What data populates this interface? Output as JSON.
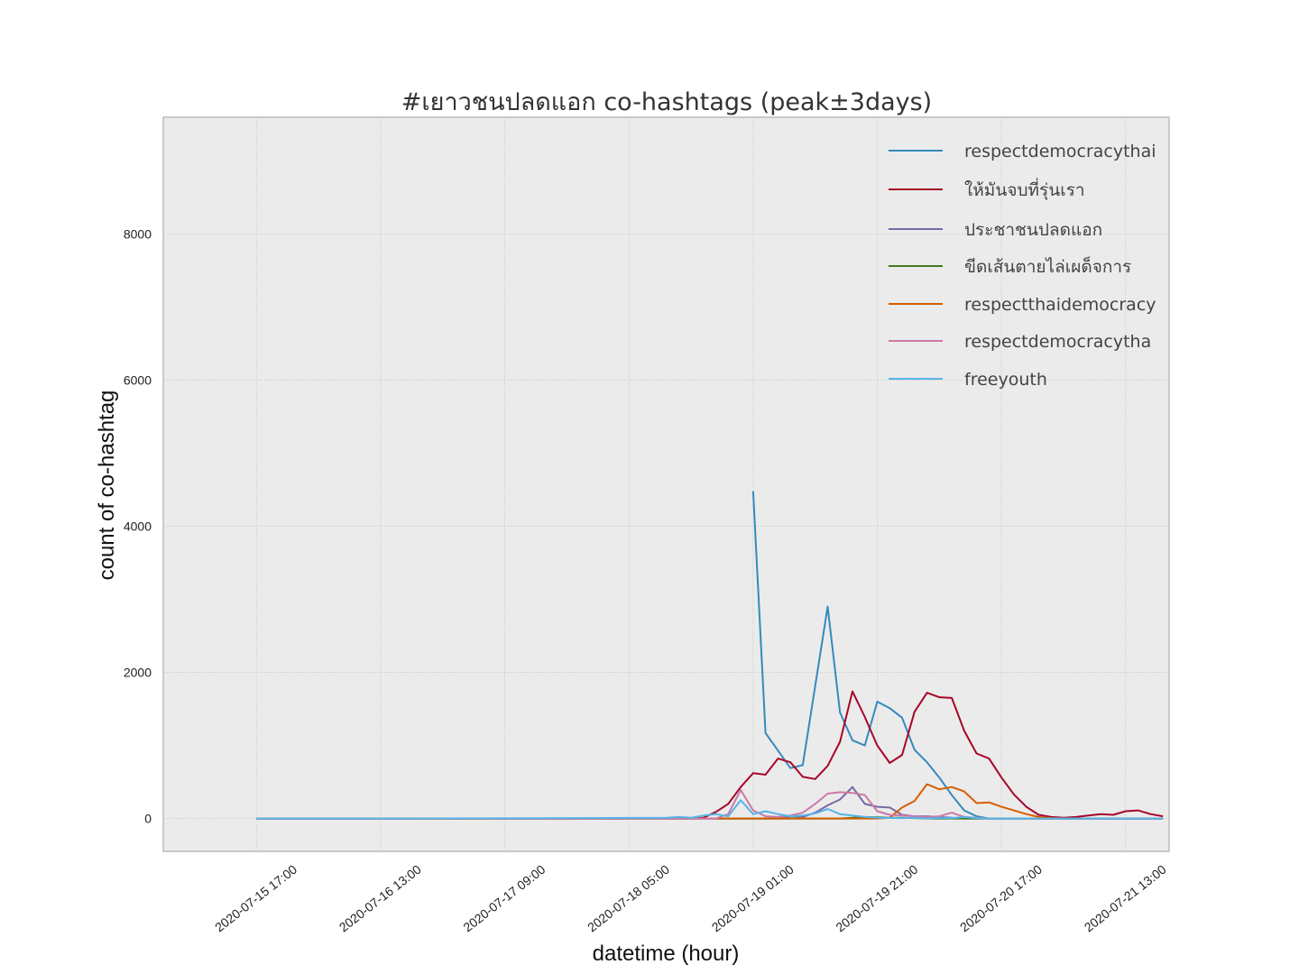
{
  "chart_data": {
    "type": "line",
    "title": "#เยาวชนปลดแอก co-hashtags (peak±3days)",
    "xlabel": "datetime (hour)",
    "ylabel": "count of co-hashtag",
    "x_start": "2020-07-15 17:00",
    "x_step_hours": 2,
    "x_tick_labels": [
      "2020-07-15 17:00",
      "2020-07-16 13:00",
      "2020-07-17 09:00",
      "2020-07-18 05:00",
      "2020-07-19 01:00",
      "2020-07-19 21:00",
      "2020-07-20 17:00",
      "2020-07-21 13:00"
    ],
    "y_ticks": [
      0,
      2000,
      4000,
      6000,
      8000
    ],
    "ylim": [
      -450,
      9600
    ],
    "xlim": [
      "2020-07-15 02:00",
      "2020-07-21 20:00"
    ],
    "grid": true,
    "legend_position": "top-right",
    "background": "#ebebeb",
    "series": [
      {
        "name": "respectdemocracythai",
        "color": "#348abd",
        "points": [
          [
            "2020-07-19 01:00",
            4480
          ],
          [
            "2020-07-19 03:00",
            1170
          ],
          [
            "2020-07-19 05:00",
            930
          ],
          [
            "2020-07-19 07:00",
            690
          ],
          [
            "2020-07-19 09:00",
            730
          ],
          [
            "2020-07-19 13:00",
            2900
          ],
          [
            "2020-07-19 15:00",
            1450
          ],
          [
            "2020-07-19 17:00",
            1070
          ],
          [
            "2020-07-19 19:00",
            1000
          ],
          [
            "2020-07-19 21:00",
            1600
          ],
          [
            "2020-07-19 23:00",
            1510
          ],
          [
            "2020-07-20 01:00",
            1380
          ],
          [
            "2020-07-20 03:00",
            940
          ],
          [
            "2020-07-20 05:00",
            770
          ],
          [
            "2020-07-20 07:00",
            560
          ],
          [
            "2020-07-20 09:00",
            320
          ],
          [
            "2020-07-20 11:00",
            110
          ],
          [
            "2020-07-20 13:00",
            30
          ],
          [
            "2020-07-20 15:00",
            0
          ],
          [
            "2020-07-20 17:00",
            0
          ],
          [
            "2020-07-21 13:00",
            0
          ],
          [
            "2020-07-21 19:00",
            0
          ]
        ]
      },
      {
        "name": "ให้มันจบที่รุ่นเรา",
        "color": "#a60628",
        "points": [
          [
            "2020-07-15 17:00",
            0
          ],
          [
            "2020-07-18 15:00",
            0
          ],
          [
            "2020-07-18 17:00",
            10
          ],
          [
            "2020-07-18 19:00",
            90
          ],
          [
            "2020-07-18 21:00",
            200
          ],
          [
            "2020-07-18 23:00",
            430
          ],
          [
            "2020-07-19 01:00",
            620
          ],
          [
            "2020-07-19 03:00",
            600
          ],
          [
            "2020-07-19 05:00",
            820
          ],
          [
            "2020-07-19 07:00",
            770
          ],
          [
            "2020-07-19 09:00",
            570
          ],
          [
            "2020-07-19 11:00",
            540
          ],
          [
            "2020-07-19 13:00",
            720
          ],
          [
            "2020-07-19 15:00",
            1050
          ],
          [
            "2020-07-19 17:00",
            1740
          ],
          [
            "2020-07-19 19:00",
            1390
          ],
          [
            "2020-07-19 21:00",
            1000
          ],
          [
            "2020-07-19 23:00",
            760
          ],
          [
            "2020-07-20 01:00",
            870
          ],
          [
            "2020-07-20 03:00",
            1460
          ],
          [
            "2020-07-20 05:00",
            1720
          ],
          [
            "2020-07-20 07:00",
            1660
          ],
          [
            "2020-07-20 09:00",
            1650
          ],
          [
            "2020-07-20 11:00",
            1200
          ],
          [
            "2020-07-20 13:00",
            890
          ],
          [
            "2020-07-20 15:00",
            820
          ],
          [
            "2020-07-20 17:00",
            560
          ],
          [
            "2020-07-20 19:00",
            330
          ],
          [
            "2020-07-20 21:00",
            160
          ],
          [
            "2020-07-20 23:00",
            50
          ],
          [
            "2020-07-21 01:00",
            20
          ],
          [
            "2020-07-21 03:00",
            10
          ],
          [
            "2020-07-21 05:00",
            20
          ],
          [
            "2020-07-21 07:00",
            40
          ],
          [
            "2020-07-21 09:00",
            60
          ],
          [
            "2020-07-21 11:00",
            50
          ],
          [
            "2020-07-21 13:00",
            100
          ],
          [
            "2020-07-21 15:00",
            110
          ],
          [
            "2020-07-21 17:00",
            60
          ],
          [
            "2020-07-21 19:00",
            30
          ]
        ]
      },
      {
        "name": "ประชาชนปลดแอก",
        "color": "#7a68a6",
        "points": [
          [
            "2020-07-15 17:00",
            0
          ],
          [
            "2020-07-19 05:00",
            0
          ],
          [
            "2020-07-19 07:00",
            30
          ],
          [
            "2020-07-19 09:00",
            20
          ],
          [
            "2020-07-19 11:00",
            80
          ],
          [
            "2020-07-19 13:00",
            180
          ],
          [
            "2020-07-19 15:00",
            260
          ],
          [
            "2020-07-19 17:00",
            430
          ],
          [
            "2020-07-19 19:00",
            200
          ],
          [
            "2020-07-19 21:00",
            160
          ],
          [
            "2020-07-19 23:00",
            150
          ],
          [
            "2020-07-20 01:00",
            50
          ],
          [
            "2020-07-20 03:00",
            30
          ],
          [
            "2020-07-20 05:00",
            30
          ],
          [
            "2020-07-20 07:00",
            20
          ],
          [
            "2020-07-20 09:00",
            10
          ],
          [
            "2020-07-20 11:00",
            0
          ],
          [
            "2020-07-21 19:00",
            0
          ]
        ]
      },
      {
        "name": "ขีดเส้นตายไล่เผด็จการ",
        "color": "#467821",
        "points": [
          [
            "2020-07-15 17:00",
            0
          ],
          [
            "2020-07-19 15:00",
            0
          ],
          [
            "2020-07-19 17:00",
            10
          ],
          [
            "2020-07-19 19:00",
            20
          ],
          [
            "2020-07-19 21:00",
            15
          ],
          [
            "2020-07-19 23:00",
            10
          ],
          [
            "2020-07-20 01:00",
            10
          ],
          [
            "2020-07-20 03:00",
            5
          ],
          [
            "2020-07-20 05:00",
            0
          ],
          [
            "2020-07-21 19:00",
            0
          ]
        ]
      },
      {
        "name": "respectthaidemocracy",
        "color": "#d55e00",
        "points": [
          [
            "2020-07-15 17:00",
            0
          ],
          [
            "2020-07-19 21:00",
            0
          ],
          [
            "2020-07-19 23:00",
            10
          ],
          [
            "2020-07-20 01:00",
            150
          ],
          [
            "2020-07-20 03:00",
            240
          ],
          [
            "2020-07-20 05:00",
            470
          ],
          [
            "2020-07-20 07:00",
            400
          ],
          [
            "2020-07-20 09:00",
            430
          ],
          [
            "2020-07-20 11:00",
            370
          ],
          [
            "2020-07-20 13:00",
            210
          ],
          [
            "2020-07-20 15:00",
            220
          ],
          [
            "2020-07-20 17:00",
            160
          ],
          [
            "2020-07-20 19:00",
            110
          ],
          [
            "2020-07-20 21:00",
            60
          ],
          [
            "2020-07-20 23:00",
            20
          ],
          [
            "2020-07-21 01:00",
            5
          ],
          [
            "2020-07-21 03:00",
            0
          ],
          [
            "2020-07-21 19:00",
            0
          ]
        ]
      },
      {
        "name": "respectdemocracytha",
        "color": "#cc79a7",
        "points": [
          [
            "2020-07-15 17:00",
            0
          ],
          [
            "2020-07-18 19:00",
            0
          ],
          [
            "2020-07-18 21:00",
            60
          ],
          [
            "2020-07-18 23:00",
            390
          ],
          [
            "2020-07-19 01:00",
            110
          ],
          [
            "2020-07-19 03:00",
            30
          ],
          [
            "2020-07-19 05:00",
            20
          ],
          [
            "2020-07-19 07:00",
            40
          ],
          [
            "2020-07-19 09:00",
            80
          ],
          [
            "2020-07-19 11:00",
            200
          ],
          [
            "2020-07-19 13:00",
            340
          ],
          [
            "2020-07-19 15:00",
            360
          ],
          [
            "2020-07-19 17:00",
            350
          ],
          [
            "2020-07-19 19:00",
            320
          ],
          [
            "2020-07-19 21:00",
            100
          ],
          [
            "2020-07-19 23:00",
            50
          ],
          [
            "2020-07-20 01:00",
            40
          ],
          [
            "2020-07-20 03:00",
            30
          ],
          [
            "2020-07-20 05:00",
            20
          ],
          [
            "2020-07-20 07:00",
            30
          ],
          [
            "2020-07-20 09:00",
            80
          ],
          [
            "2020-07-20 11:00",
            20
          ],
          [
            "2020-07-20 13:00",
            10
          ],
          [
            "2020-07-20 15:00",
            0
          ],
          [
            "2020-07-21 19:00",
            0
          ]
        ]
      },
      {
        "name": "freeyouth",
        "color": "#56b4e9",
        "points": [
          [
            "2020-07-15 17:00",
            0
          ],
          [
            "2020-07-16 17:00",
            0
          ],
          [
            "2020-07-17 21:00",
            5
          ],
          [
            "2020-07-18 11:00",
            10
          ],
          [
            "2020-07-18 13:00",
            20
          ],
          [
            "2020-07-18 15:00",
            10
          ],
          [
            "2020-07-18 17:00",
            40
          ],
          [
            "2020-07-18 19:00",
            60
          ],
          [
            "2020-07-18 21:00",
            30
          ],
          [
            "2020-07-18 23:00",
            250
          ],
          [
            "2020-07-19 01:00",
            60
          ],
          [
            "2020-07-19 03:00",
            100
          ],
          [
            "2020-07-19 05:00",
            60
          ],
          [
            "2020-07-19 07:00",
            30
          ],
          [
            "2020-07-19 09:00",
            40
          ],
          [
            "2020-07-19 11:00",
            70
          ],
          [
            "2020-07-19 13:00",
            130
          ],
          [
            "2020-07-19 15:00",
            60
          ],
          [
            "2020-07-19 17:00",
            40
          ],
          [
            "2020-07-19 19:00",
            20
          ],
          [
            "2020-07-19 21:00",
            10
          ],
          [
            "2020-07-20 01:00",
            5
          ],
          [
            "2020-07-20 03:00",
            10
          ],
          [
            "2020-07-20 05:00",
            0
          ],
          [
            "2020-07-20 07:00",
            10
          ],
          [
            "2020-07-20 09:00",
            5
          ],
          [
            "2020-07-20 11:00",
            20
          ],
          [
            "2020-07-20 13:00",
            5
          ],
          [
            "2020-07-20 15:00",
            0
          ],
          [
            "2020-07-21 19:00",
            0
          ]
        ]
      }
    ]
  }
}
